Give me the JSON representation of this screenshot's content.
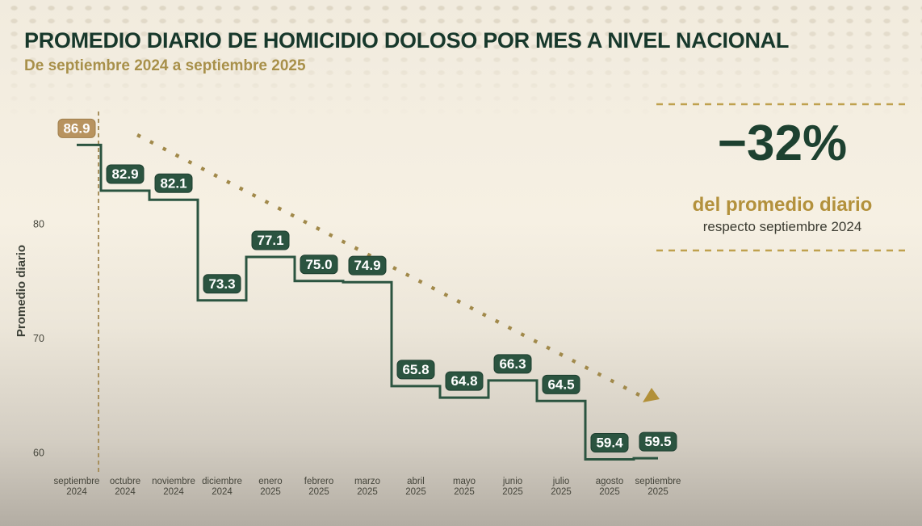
{
  "header": {
    "title": "PROMEDIO DIARIO DE HOMICIDIO DOLOSO POR MES A NIVEL NACIONAL",
    "subtitle": "De septiembre 2024 a septiembre 2025"
  },
  "panel": {
    "value": "−32%",
    "label": "del promedio diario",
    "sublabel": "respecto septiembre 2024"
  },
  "colors": {
    "background_top": "#f2ecdf",
    "background_bottom": "#b3ada3",
    "title_green": "#17382b",
    "line_green": "#2b5440",
    "value_box_green": "#2b5440",
    "value_box_tan": "#b8935f",
    "gold": "#b3913c",
    "dashed_rule": "#bfa14e",
    "dashed_vline": "#a8905e",
    "trend_dot": "#a1894a",
    "arrow": "#b29038",
    "axis_text": "#45453b",
    "label_text": "#ffffff"
  },
  "chart_data": {
    "type": "line",
    "line_style": "step-mid",
    "title": "PROMEDIO DIARIO DE HOMICIDIO DOLOSO POR MES A NIVEL NACIONAL",
    "subtitle": "De septiembre 2024 a septiembre 2025",
    "xlabel": "",
    "ylabel": "Promedio diario",
    "yticks": [
      60,
      70,
      80
    ],
    "ylim": [
      57.5,
      90
    ],
    "grid": false,
    "legend": false,
    "categories": [
      "septiembre 2024",
      "octubre 2024",
      "noviembre 2024",
      "diciembre 2024",
      "enero 2025",
      "febrero 2025",
      "marzo 2025",
      "abril 2025",
      "mayo 2025",
      "junio 2025",
      "julio 2025",
      "agosto 2025",
      "septiembre 2025"
    ],
    "values": [
      86.9,
      82.9,
      82.1,
      73.3,
      77.1,
      75.0,
      74.9,
      65.8,
      64.8,
      66.3,
      64.5,
      59.4,
      59.5
    ],
    "value_labels": [
      "86.9",
      "82.9",
      "82.1",
      "73.3",
      "77.1",
      "75.0",
      "74.9",
      "65.8",
      "64.8",
      "66.3",
      "64.5",
      "59.4",
      "59.5"
    ],
    "highlight_index": 0,
    "reference_vline_category": "septiembre 2024",
    "trendline": {
      "style": "dotted",
      "direction": "down",
      "arrow": true
    },
    "annotation": {
      "value": "−32%",
      "label": "del promedio diario",
      "sublabel": "respecto septiembre 2024"
    }
  }
}
